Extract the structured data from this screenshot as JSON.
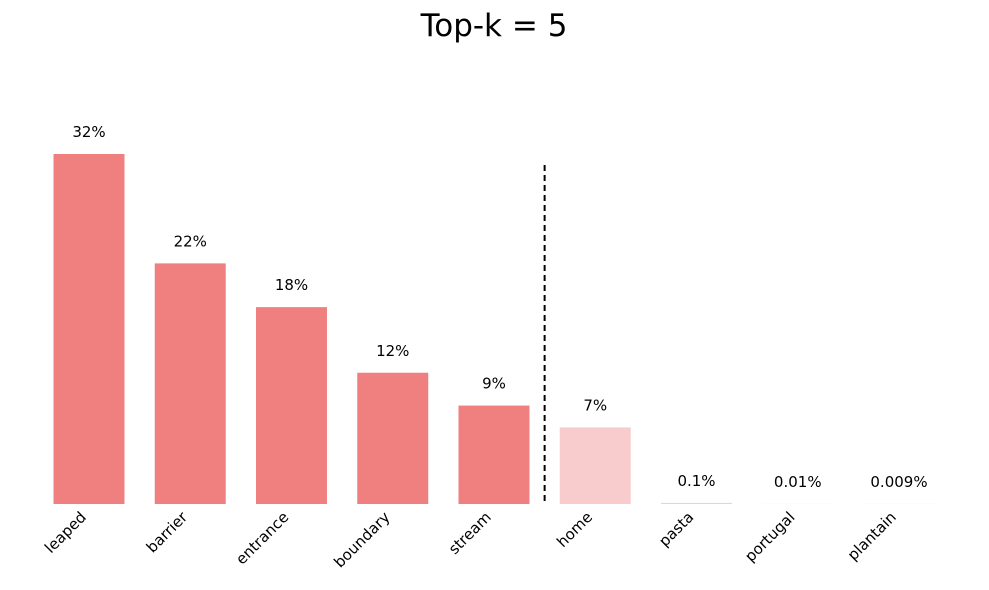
{
  "chart_data": {
    "type": "bar",
    "title": "Top-k = 5",
    "categories": [
      "leaped",
      "barrier",
      "entrance",
      "boundary",
      "stream",
      "home",
      "pasta",
      "portugal",
      "plantain"
    ],
    "values": [
      32,
      22,
      18,
      12,
      9,
      7,
      0.1,
      0.01,
      0.009
    ],
    "value_labels": [
      "32%",
      "22%",
      "18%",
      "12%",
      "9%",
      "7%",
      "0.1%",
      "0.01%",
      "0.009%"
    ],
    "colors": [
      "#f08080",
      "#f08080",
      "#f08080",
      "#f08080",
      "#f08080",
      "#f8cccc",
      "#f8cccc",
      "#f8cccc",
      "#f8cccc"
    ],
    "ylim": [
      0,
      40
    ],
    "top_k": 5
  }
}
